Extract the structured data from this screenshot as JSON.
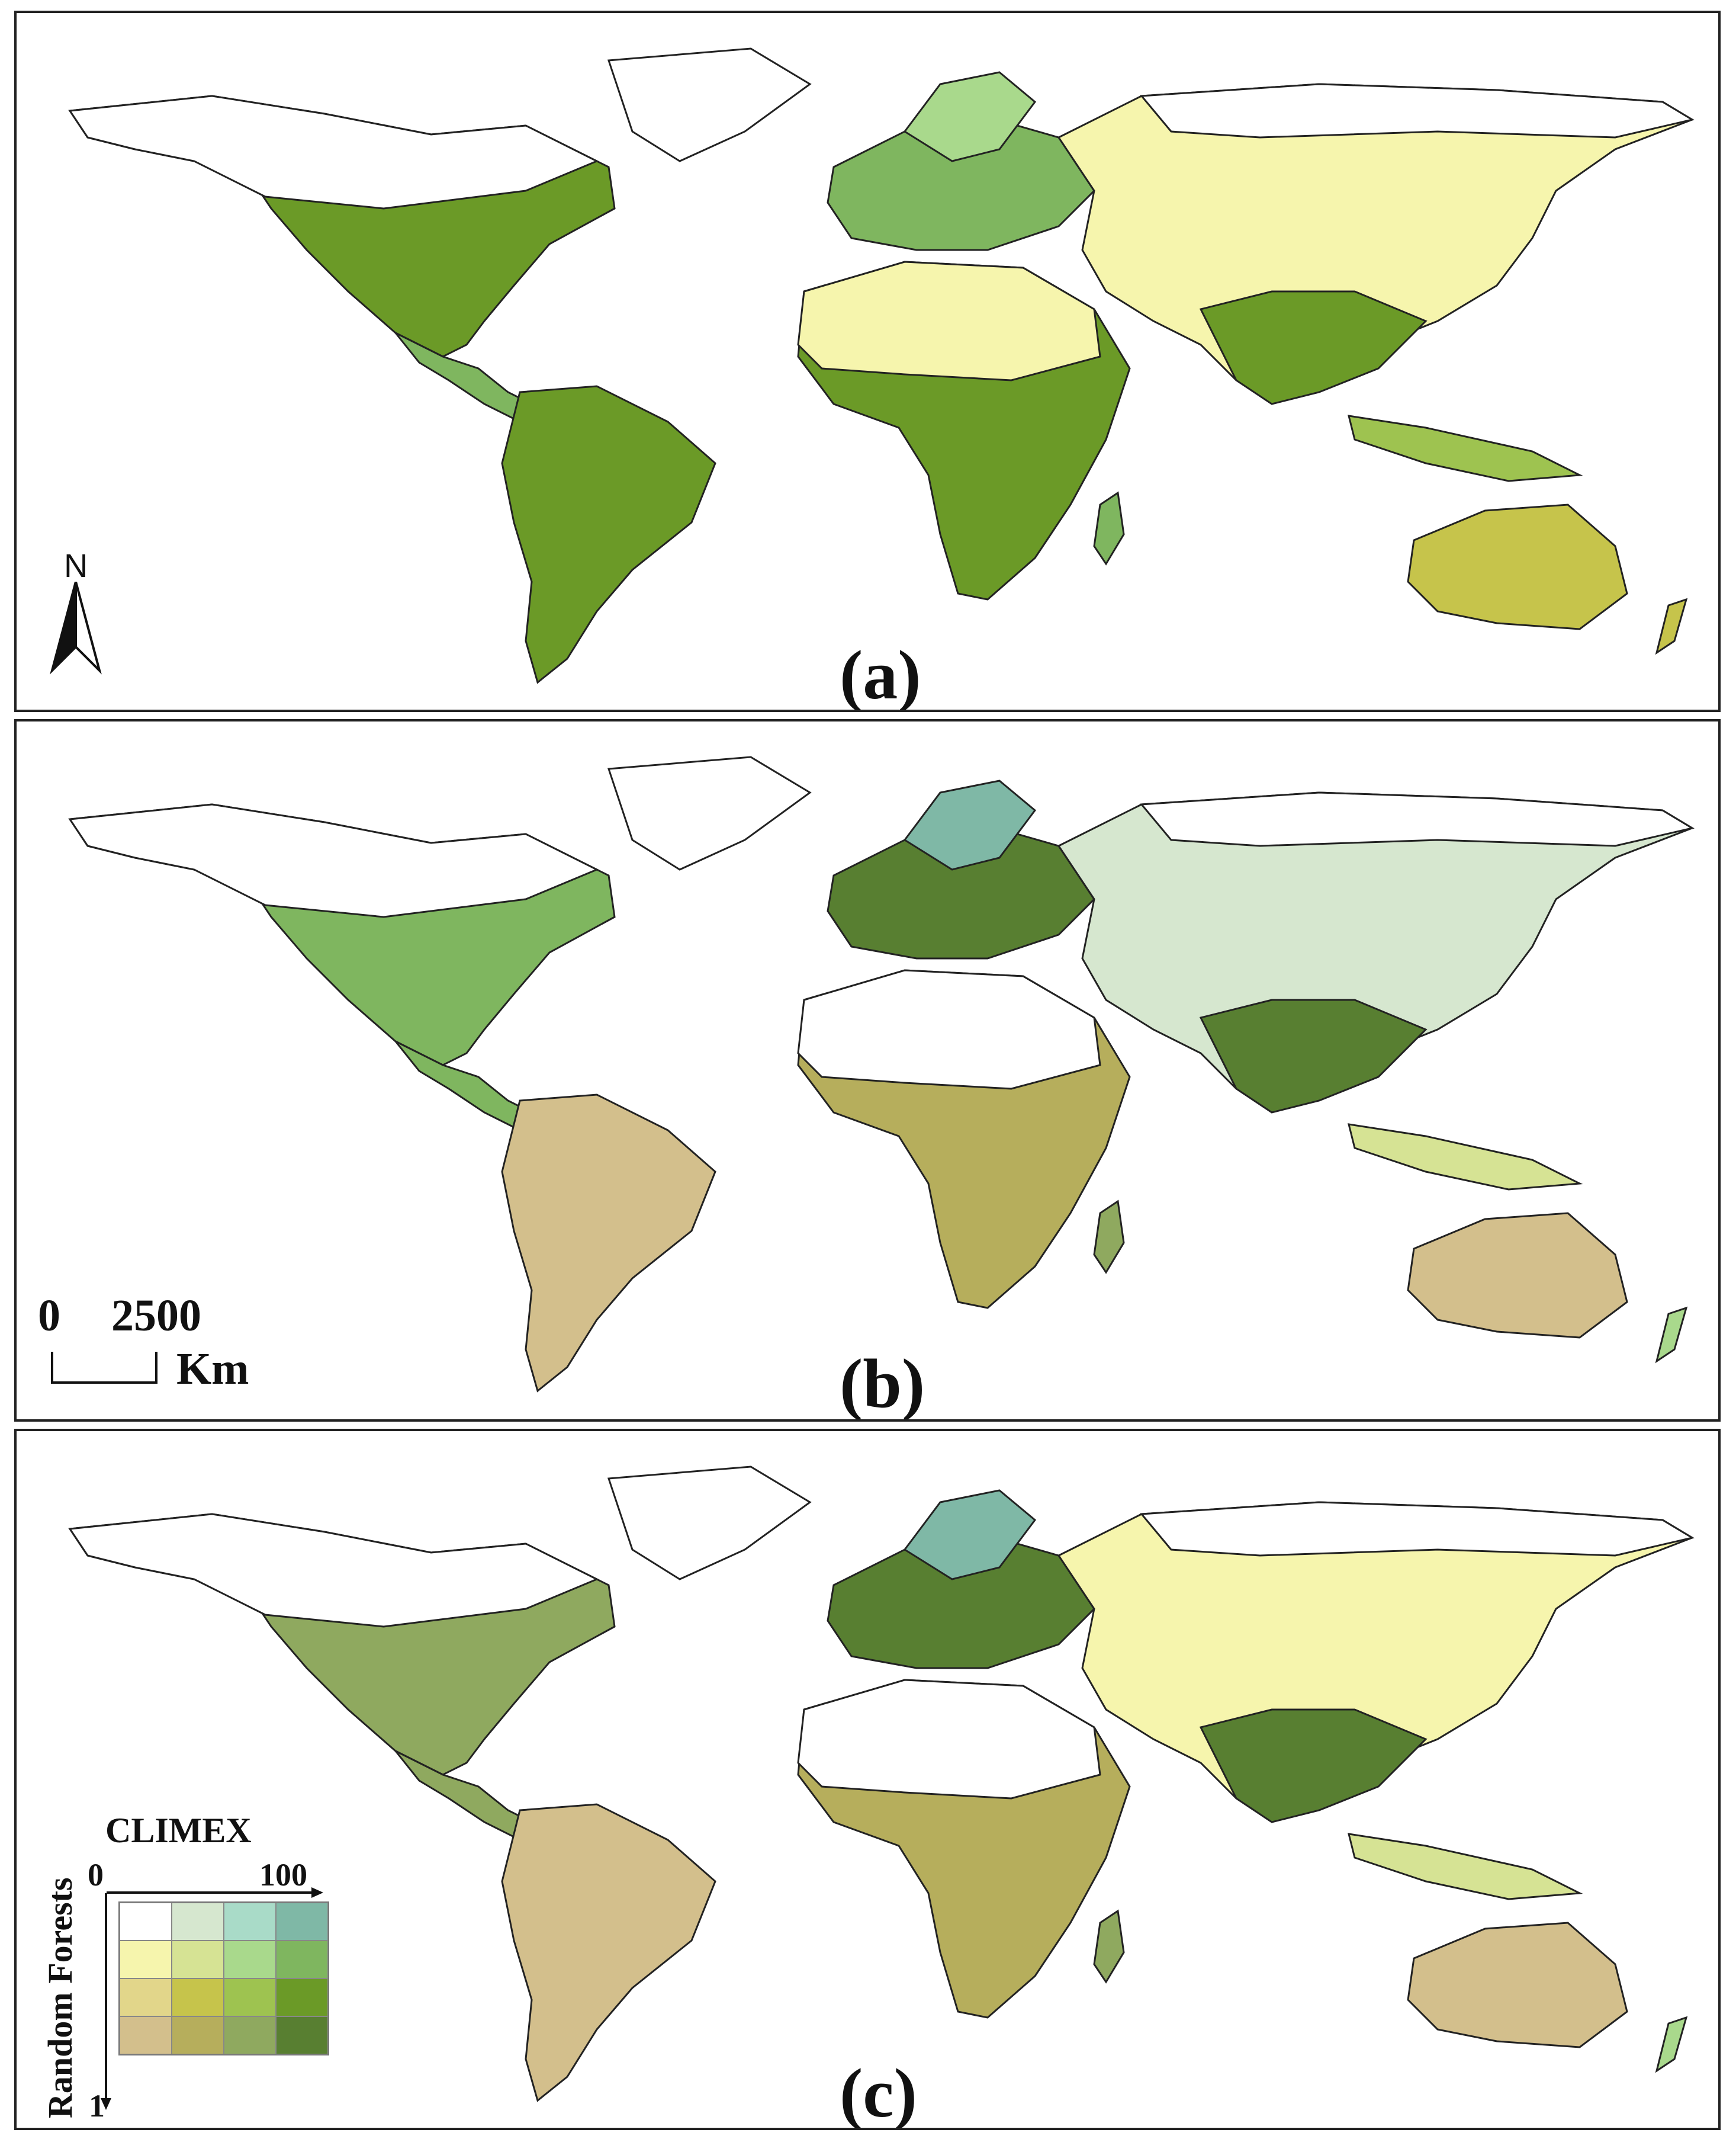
{
  "panels": [
    {
      "label": "(a)"
    },
    {
      "label": "(b)"
    },
    {
      "label": "(c)"
    }
  ],
  "north_arrow": {
    "letter": "N",
    "icon": "north-arrow-icon"
  },
  "scale_bar": {
    "start": "0",
    "end": "2500",
    "unit": "Km"
  },
  "legend": {
    "x_title": "CLIMEX",
    "y_title": "Random Forests",
    "x_min": "0",
    "x_max": "100",
    "y_max": "1",
    "colors": [
      [
        "#ffffff",
        "#d6e7cf",
        "#a9dbc8",
        "#7fb8a6"
      ],
      [
        "#f6f5ad",
        "#d6e394",
        "#a9d98c",
        "#7fb65f"
      ],
      [
        "#e2d68a",
        "#c6c44b",
        "#9ec350",
        "#6b9a27"
      ],
      [
        "#d3bf8c",
        "#b6ae5c",
        "#8fa95f",
        "#587f31"
      ]
    ]
  }
}
